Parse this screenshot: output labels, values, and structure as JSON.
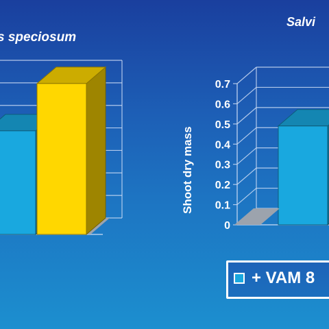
{
  "chart_data": [
    {
      "type": "bar",
      "title": "s speciosum",
      "ylabel": "",
      "ylim": [
        0,
        0.7
      ],
      "grid": true,
      "series": [
        {
          "name": "+ VAM 8",
          "color": "#19a8df",
          "values": [
            0.46
          ]
        },
        {
          "name": "",
          "color": "#ffd700",
          "values": [
            0.67
          ]
        }
      ]
    },
    {
      "type": "bar",
      "title": "Salvi",
      "ylabel": "Shoot dry mass",
      "ylim": [
        0,
        0.7
      ],
      "yticks": [
        "0",
        "0.1",
        "0.2",
        "0.3",
        "0.4",
        "0.5",
        "0.6",
        "0.7"
      ],
      "grid": true,
      "series": [
        {
          "name": "+ VAM 8",
          "color": "#19a8df",
          "values": [
            0.49
          ]
        }
      ]
    }
  ],
  "legend": {
    "label": "+ VAM 8",
    "swatch_color": "#19a8df"
  }
}
